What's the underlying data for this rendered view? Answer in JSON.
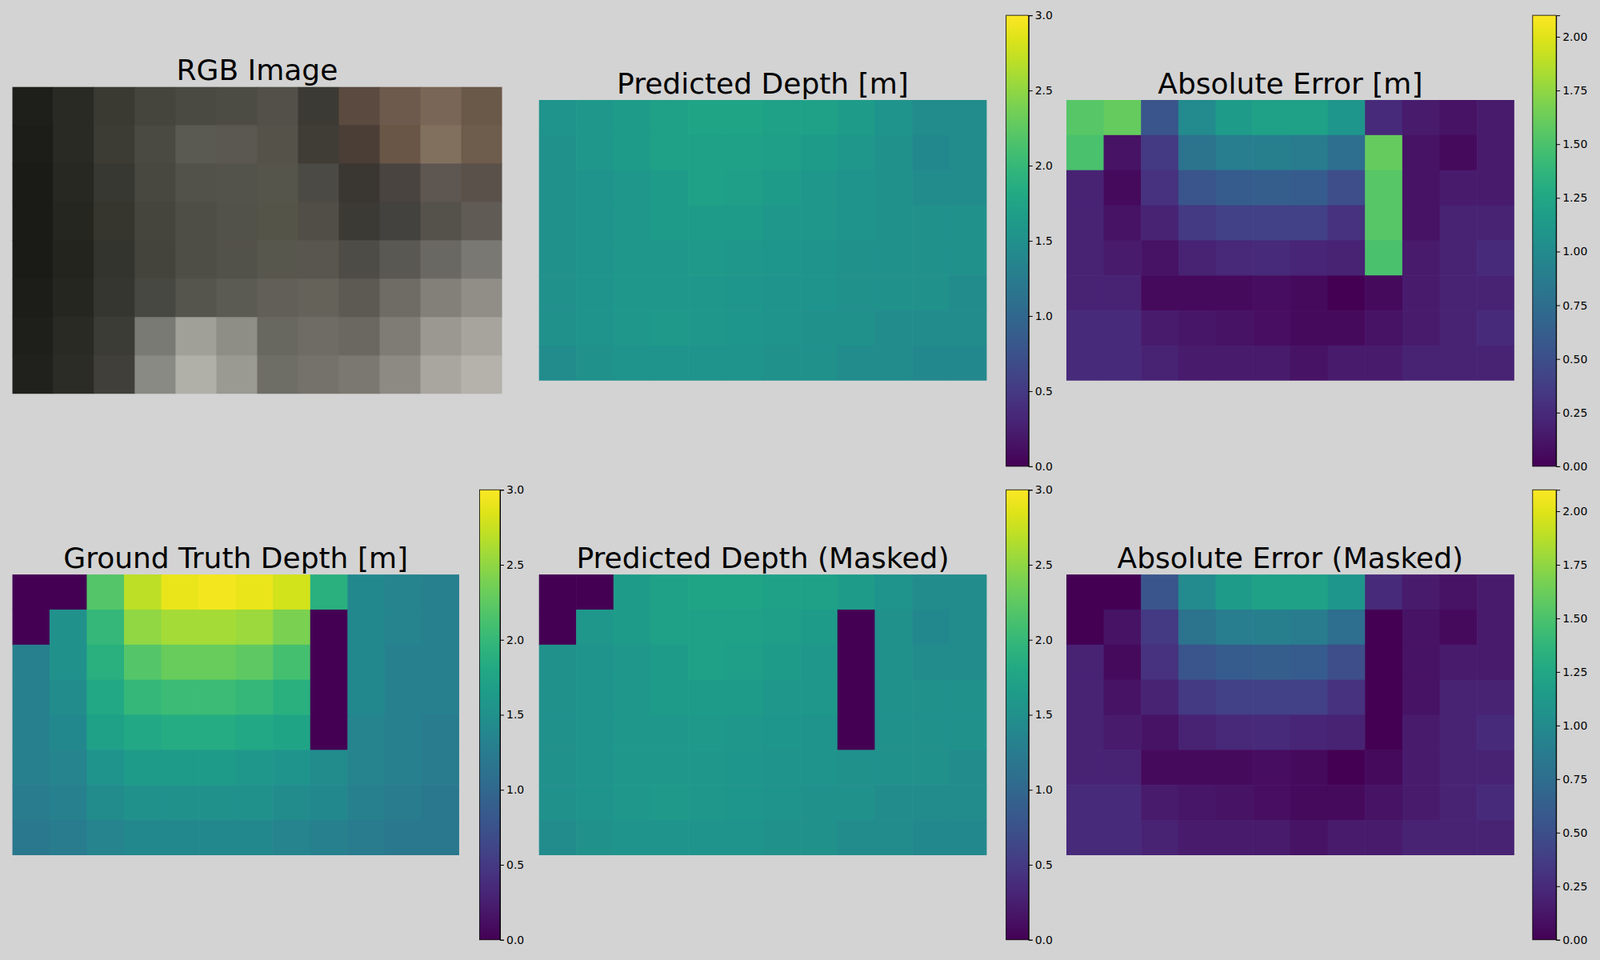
{
  "chart_data": [
    {
      "type": "image",
      "title": "RGB Image",
      "tick_labels": false,
      "colors": [
        [
          "#1e1e1a",
          "#2a2a25",
          "#3a3a33",
          "#45453d",
          "#4a4a42",
          "#4d4c44",
          "#525048",
          "#3c3a34",
          "#5a4a40",
          "#6e5a4c",
          "#7a6656",
          "#6a5848"
        ],
        [
          "#1c1c18",
          "#2a2a24",
          "#3c3c35",
          "#4a4a42",
          "#5a5a52",
          "#5a5850",
          "#555349",
          "#403c36",
          "#4a3e36",
          "#6a5646",
          "#82705e",
          "#6e5c4c"
        ],
        [
          "#1a1a16",
          "#282822",
          "#383832",
          "#484840",
          "#52524a",
          "#54534b",
          "#56554c",
          "#4c4a44",
          "#3a3632",
          "#4a4440",
          "#5e5650",
          "#5a524a"
        ],
        [
          "#1a1a16",
          "#262620",
          "#36362f",
          "#45453e",
          "#4e4e46",
          "#52514a",
          "#555449",
          "#504e46",
          "#3c3a35",
          "#44423e",
          "#55524c",
          "#605c55"
        ],
        [
          "#1a1a16",
          "#24241f",
          "#34342e",
          "#44443d",
          "#4e4d46",
          "#53524a",
          "#58574e",
          "#58564e",
          "#4e4c46",
          "#5a5852",
          "#6a6862",
          "#7a7872"
        ],
        [
          "#1c1c18",
          "#262621",
          "#363630",
          "#484842",
          "#55544d",
          "#5c5b53",
          "#615f57",
          "#646259",
          "#5c5a52",
          "#6e6c65",
          "#828079",
          "#908e87"
        ],
        [
          "#1e1e1a",
          "#2a2a24",
          "#3c3c36",
          "#7a7a74",
          "#a09f98",
          "#8e8d86",
          "#686760",
          "#6e6c64",
          "#6a6860",
          "#7e7c75",
          "#9a9891",
          "#a6a49d"
        ],
        [
          "#20201c",
          "#2c2c26",
          "#403f39",
          "#8a8a84",
          "#b0afa8",
          "#9a9992",
          "#6e6d66",
          "#74726a",
          "#7a7870",
          "#8c8a83",
          "#a8a69f",
          "#b4b2ab"
        ]
      ]
    },
    {
      "type": "heatmap",
      "title": "Predicted Depth [m]",
      "tick_labels": false,
      "cells": [
        [
          1.55,
          1.6,
          1.65,
          1.7,
          1.75,
          1.75,
          1.7,
          1.7,
          1.65,
          1.55,
          1.45,
          1.45
        ],
        [
          1.5,
          1.6,
          1.65,
          1.7,
          1.72,
          1.7,
          1.68,
          1.65,
          1.6,
          1.5,
          1.4,
          1.45
        ],
        [
          1.5,
          1.55,
          1.6,
          1.65,
          1.7,
          1.68,
          1.65,
          1.6,
          1.55,
          1.5,
          1.45,
          1.45
        ],
        [
          1.5,
          1.55,
          1.6,
          1.65,
          1.65,
          1.65,
          1.6,
          1.6,
          1.55,
          1.5,
          1.5,
          1.5
        ],
        [
          1.5,
          1.55,
          1.6,
          1.6,
          1.62,
          1.6,
          1.58,
          1.55,
          1.5,
          1.5,
          1.5,
          1.5
        ],
        [
          1.5,
          1.55,
          1.6,
          1.6,
          1.6,
          1.58,
          1.55,
          1.55,
          1.5,
          1.5,
          1.5,
          1.45
        ],
        [
          1.5,
          1.55,
          1.6,
          1.62,
          1.6,
          1.58,
          1.55,
          1.5,
          1.5,
          1.45,
          1.45,
          1.45
        ],
        [
          1.45,
          1.5,
          1.55,
          1.55,
          1.55,
          1.55,
          1.5,
          1.5,
          1.45,
          1.45,
          1.4,
          1.4
        ]
      ],
      "colorbar": {
        "range": [
          0,
          3
        ],
        "ticks": [
          {
            "value": 0,
            "label": "0.0"
          },
          0.5,
          {
            "value": 1,
            "label": "1.0"
          },
          1.5,
          {
            "value": 2,
            "label": "2.0"
          },
          2.5,
          {
            "value": 3,
            "label": "3.0"
          }
        ]
      }
    },
    {
      "type": "heatmap",
      "title": "Absolute Error [m]",
      "tick_labels": false,
      "cells": [
        [
          1.55,
          1.6,
          0.55,
          1.0,
          1.15,
          1.2,
          1.2,
          1.1,
          0.25,
          0.15,
          0.1,
          0.15
        ],
        [
          1.5,
          0.1,
          0.35,
          0.8,
          0.88,
          0.9,
          0.87,
          0.75,
          1.6,
          0.1,
          0.05,
          0.15
        ],
        [
          0.2,
          0.05,
          0.3,
          0.55,
          0.6,
          0.62,
          0.6,
          0.5,
          1.55,
          0.1,
          0.15,
          0.15
        ],
        [
          0.2,
          0.1,
          0.2,
          0.35,
          0.4,
          0.4,
          0.4,
          0.3,
          1.55,
          0.1,
          0.2,
          0.2
        ],
        [
          0.2,
          0.15,
          0.1,
          0.2,
          0.23,
          0.25,
          0.22,
          0.2,
          1.5,
          0.15,
          0.2,
          0.25
        ],
        [
          0.2,
          0.2,
          0.05,
          0.05,
          0.05,
          0.07,
          0.05,
          0,
          0.05,
          0.15,
          0.2,
          0.2
        ],
        [
          0.25,
          0.25,
          0.15,
          0.12,
          0.1,
          0.08,
          0.05,
          0.05,
          0.1,
          0.15,
          0.2,
          0.25
        ],
        [
          0.25,
          0.25,
          0.2,
          0.15,
          0.15,
          0.15,
          0.1,
          0.15,
          0.15,
          0.2,
          0.2,
          0.2
        ]
      ],
      "colorbar": {
        "range": [
          0,
          2.1
        ],
        "ticks": [
          {
            "value": 0,
            "label": "0.00"
          },
          0.25,
          {
            "value": 0.5,
            "label": "0.50"
          },
          0.75,
          {
            "value": 1,
            "label": "1.00"
          },
          1.25,
          {
            "value": 1.5,
            "label": "1.50"
          },
          1.75,
          {
            "value": 2,
            "label": "2.00"
          }
        ]
      }
    },
    {
      "type": "heatmap",
      "title": "Ground Truth Depth [m]",
      "tick_labels": false,
      "cells": [
        [
          0,
          0,
          2.2,
          2.7,
          2.9,
          2.95,
          2.9,
          2.8,
          1.9,
          1.4,
          1.35,
          1.3
        ],
        [
          0,
          1.5,
          2.0,
          2.5,
          2.6,
          2.6,
          2.55,
          2.4,
          0,
          1.4,
          1.35,
          1.3
        ],
        [
          1.3,
          1.5,
          1.9,
          2.2,
          2.3,
          2.3,
          2.25,
          2.1,
          0,
          1.4,
          1.3,
          1.3
        ],
        [
          1.3,
          1.45,
          1.8,
          2.0,
          2.05,
          2.05,
          2.0,
          1.9,
          0,
          1.4,
          1.3,
          1.3
        ],
        [
          1.3,
          1.4,
          1.7,
          1.8,
          1.85,
          1.85,
          1.8,
          1.75,
          0,
          1.35,
          1.3,
          1.25
        ],
        [
          1.3,
          1.35,
          1.55,
          1.65,
          1.65,
          1.65,
          1.6,
          1.55,
          1.45,
          1.35,
          1.3,
          1.25
        ],
        [
          1.25,
          1.3,
          1.45,
          1.5,
          1.5,
          1.5,
          1.5,
          1.45,
          1.4,
          1.3,
          1.25,
          1.2
        ],
        [
          1.2,
          1.25,
          1.35,
          1.4,
          1.4,
          1.4,
          1.4,
          1.35,
          1.3,
          1.25,
          1.2,
          1.2
        ]
      ],
      "colorbar": {
        "range": [
          0,
          3
        ],
        "ticks": [
          {
            "value": 0,
            "label": "0.0"
          },
          0.5,
          {
            "value": 1,
            "label": "1.0"
          },
          1.5,
          {
            "value": 2,
            "label": "2.0"
          },
          2.5,
          {
            "value": 3,
            "label": "3.0"
          }
        ]
      }
    },
    {
      "type": "heatmap",
      "title": "Predicted Depth (Masked)",
      "tick_labels": false,
      "cells": [
        [
          0,
          0,
          1.65,
          1.7,
          1.75,
          1.75,
          1.7,
          1.7,
          1.65,
          1.55,
          1.45,
          1.45
        ],
        [
          0,
          1.6,
          1.65,
          1.7,
          1.72,
          1.7,
          1.68,
          1.65,
          0,
          1.5,
          1.4,
          1.45
        ],
        [
          1.5,
          1.55,
          1.6,
          1.65,
          1.7,
          1.68,
          1.65,
          1.6,
          0,
          1.5,
          1.45,
          1.45
        ],
        [
          1.5,
          1.55,
          1.6,
          1.65,
          1.65,
          1.65,
          1.6,
          1.6,
          0,
          1.5,
          1.5,
          1.5
        ],
        [
          1.5,
          1.55,
          1.6,
          1.6,
          1.62,
          1.6,
          1.58,
          1.55,
          0,
          1.5,
          1.5,
          1.5
        ],
        [
          1.5,
          1.55,
          1.6,
          1.6,
          1.6,
          1.58,
          1.55,
          1.55,
          1.5,
          1.5,
          1.5,
          1.45
        ],
        [
          1.5,
          1.55,
          1.6,
          1.62,
          1.6,
          1.58,
          1.55,
          1.5,
          1.5,
          1.45,
          1.45,
          1.45
        ],
        [
          1.45,
          1.5,
          1.55,
          1.55,
          1.55,
          1.55,
          1.5,
          1.5,
          1.45,
          1.45,
          1.4,
          1.4
        ]
      ],
      "colorbar": {
        "range": [
          0,
          3
        ],
        "ticks": [
          {
            "value": 0,
            "label": "0.0"
          },
          0.5,
          {
            "value": 1,
            "label": "1.0"
          },
          1.5,
          {
            "value": 2,
            "label": "2.0"
          },
          2.5,
          {
            "value": 3,
            "label": "3.0"
          }
        ]
      }
    },
    {
      "type": "heatmap",
      "title": "Absolute Error (Masked)",
      "tick_labels": false,
      "cells": [
        [
          0,
          0,
          0.55,
          1.0,
          1.15,
          1.2,
          1.2,
          1.1,
          0.25,
          0.15,
          0.1,
          0.15
        ],
        [
          0,
          0.1,
          0.35,
          0.8,
          0.88,
          0.9,
          0.87,
          0.75,
          0,
          0.1,
          0.05,
          0.15
        ],
        [
          0.2,
          0.05,
          0.3,
          0.55,
          0.6,
          0.62,
          0.6,
          0.5,
          0,
          0.1,
          0.15,
          0.15
        ],
        [
          0.2,
          0.1,
          0.2,
          0.35,
          0.4,
          0.4,
          0.4,
          0.3,
          0,
          0.1,
          0.2,
          0.2
        ],
        [
          0.2,
          0.15,
          0.1,
          0.2,
          0.23,
          0.25,
          0.22,
          0.2,
          0,
          0.15,
          0.2,
          0.25
        ],
        [
          0.2,
          0.2,
          0.05,
          0.05,
          0.05,
          0.07,
          0.05,
          0,
          0.05,
          0.15,
          0.2,
          0.2
        ],
        [
          0.25,
          0.25,
          0.15,
          0.12,
          0.1,
          0.08,
          0.05,
          0.05,
          0.1,
          0.15,
          0.2,
          0.25
        ],
        [
          0.25,
          0.25,
          0.2,
          0.15,
          0.15,
          0.15,
          0.1,
          0.15,
          0.15,
          0.2,
          0.2,
          0.2
        ]
      ],
      "colorbar": {
        "range": [
          0,
          2.1
        ],
        "ticks": [
          {
            "value": 0,
            "label": "0.00"
          },
          0.25,
          {
            "value": 0.5,
            "label": "0.50"
          },
          0.75,
          {
            "value": 1,
            "label": "1.00"
          },
          1.25,
          {
            "value": 1.5,
            "label": "1.50"
          },
          1.75,
          {
            "value": 2,
            "label": "2.00"
          }
        ]
      }
    }
  ]
}
